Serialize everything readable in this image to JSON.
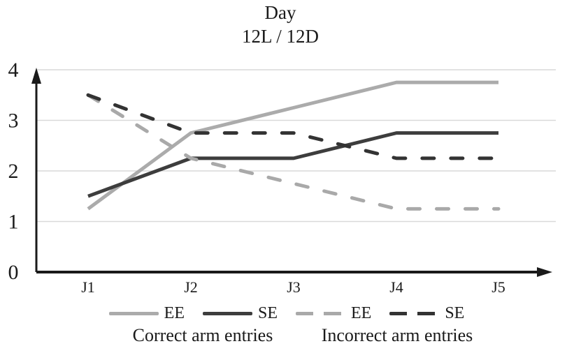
{
  "chart_data": {
    "type": "line",
    "title": "Day",
    "subtitle": "12L / 12D",
    "categories": [
      "J1",
      "J2",
      "J3",
      "J4",
      "J5"
    ],
    "xlabel": "",
    "ylabel": "",
    "ylim": [
      0,
      4
    ],
    "yticks": [
      0,
      1,
      2,
      3,
      4
    ],
    "grid": true,
    "legend_position": "bottom",
    "series": [
      {
        "name": "EE",
        "group": "Correct arm entries",
        "line_style": "solid",
        "color": "#ABABAB",
        "values": [
          1.25,
          2.75,
          3.25,
          3.75,
          3.75
        ]
      },
      {
        "name": "SE",
        "group": "Correct arm entries",
        "line_style": "solid",
        "color": "#3D3D3D",
        "values": [
          1.5,
          2.25,
          2.25,
          2.75,
          2.75
        ]
      },
      {
        "name": "EE",
        "group": "Incorrect arm entries",
        "line_style": "dashed",
        "color": "#A9A9A9",
        "values": [
          3.5,
          2.25,
          1.75,
          1.25,
          1.25
        ]
      },
      {
        "name": "SE",
        "group": "Incorrect arm entries",
        "line_style": "dashed",
        "color": "#333333",
        "values": [
          3.5,
          2.75,
          2.75,
          2.25,
          2.25
        ]
      }
    ],
    "legend_groups": [
      "Correct arm entries",
      "Incorrect arm entries"
    ]
  },
  "colors": {
    "gridline": "#D9D9D9",
    "axis": "#1A1A1A",
    "text": "#1A1A1A",
    "background": "#FFFFFF"
  }
}
